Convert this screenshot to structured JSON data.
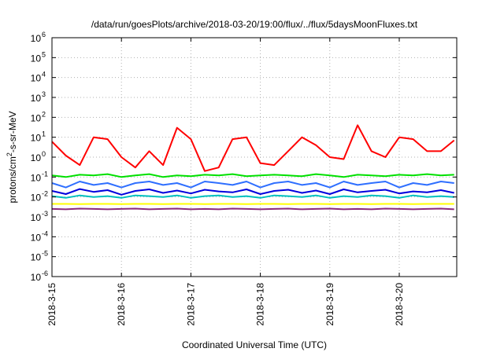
{
  "chart_data": {
    "type": "line",
    "title": "/data/run/goesPlots/archive/2018-03-20/19:00/flux/../flux/5daysMoonFluxes.txt",
    "xlabel": "Coordinated Universal Time (UTC)",
    "ylabel": "protons/cm2-s-sr-MeV",
    "ylabel_parts": {
      "before": "protons/cm",
      "sup": "2",
      "after": "-s-sr-MeV"
    },
    "x_ticks": [
      "2018-3-15",
      "2018-3-16",
      "2018-3-17",
      "2018-3-18",
      "2018-3-19",
      "2018-3-20"
    ],
    "xlim": [
      "2018-3-15 00:00",
      "2018-3-20 19:00"
    ],
    "y_scale": "log",
    "ylim": [
      1e-06,
      1000000.0
    ],
    "y_ticks": [
      {
        "base": "10",
        "exp": "6"
      },
      {
        "base": "10",
        "exp": "5"
      },
      {
        "base": "10",
        "exp": "4"
      },
      {
        "base": "10",
        "exp": "3"
      },
      {
        "base": "10",
        "exp": "2"
      },
      {
        "base": "10",
        "exp": "1"
      },
      {
        "base": "10",
        "exp": "0"
      },
      {
        "base": "10",
        "exp": "-1"
      },
      {
        "base": "10",
        "exp": "-2"
      },
      {
        "base": "10",
        "exp": "-3"
      },
      {
        "base": "10",
        "exp": "-4"
      },
      {
        "base": "10",
        "exp": "-5"
      },
      {
        "base": "10",
        "exp": "-6"
      }
    ],
    "grid": true,
    "x_day_offsets": [
      0,
      0.2,
      0.4,
      0.6,
      0.8,
      1,
      1.2,
      1.4,
      1.6,
      1.8,
      2,
      2.2,
      2.4,
      2.6,
      2.8,
      3,
      3.2,
      3.4,
      3.6,
      3.8,
      4,
      4.2,
      4.4,
      4.6,
      4.8,
      5,
      5.2,
      5.4,
      5.6,
      5.79
    ],
    "series": [
      {
        "color": "#ff0000",
        "values": [
          6,
          1.2,
          0.4,
          10,
          8,
          1,
          0.3,
          2,
          0.4,
          30,
          8,
          0.2,
          0.3,
          8,
          10,
          0.5,
          0.4,
          2,
          10,
          4,
          1,
          0.8,
          40,
          2,
          1,
          10,
          8,
          2,
          2,
          7
        ]
      },
      {
        "color": "#00e000",
        "values": [
          0.12,
          0.1,
          0.13,
          0.12,
          0.14,
          0.1,
          0.12,
          0.14,
          0.1,
          0.12,
          0.11,
          0.13,
          0.12,
          0.14,
          0.11,
          0.12,
          0.13,
          0.12,
          0.11,
          0.14,
          0.12,
          0.1,
          0.13,
          0.12,
          0.11,
          0.13,
          0.12,
          0.14,
          0.12,
          0.13
        ]
      },
      {
        "color": "#2f6fff",
        "values": [
          0.05,
          0.03,
          0.06,
          0.04,
          0.05,
          0.03,
          0.05,
          0.06,
          0.04,
          0.05,
          0.03,
          0.06,
          0.05,
          0.04,
          0.06,
          0.03,
          0.05,
          0.06,
          0.04,
          0.05,
          0.03,
          0.06,
          0.04,
          0.05,
          0.06,
          0.03,
          0.05,
          0.04,
          0.06,
          0.05
        ]
      },
      {
        "color": "#0000dd",
        "values": [
          0.02,
          0.014,
          0.025,
          0.018,
          0.022,
          0.013,
          0.02,
          0.024,
          0.016,
          0.021,
          0.015,
          0.023,
          0.019,
          0.017,
          0.024,
          0.014,
          0.02,
          0.023,
          0.016,
          0.021,
          0.014,
          0.024,
          0.017,
          0.02,
          0.023,
          0.015,
          0.019,
          0.017,
          0.022,
          0.016
        ]
      },
      {
        "color": "#00c0c0",
        "values": [
          0.011,
          0.009,
          0.012,
          0.01,
          0.011,
          0.009,
          0.012,
          0.011,
          0.01,
          0.012,
          0.009,
          0.011,
          0.012,
          0.01,
          0.011,
          0.009,
          0.012,
          0.011,
          0.01,
          0.012,
          0.009,
          0.011,
          0.01,
          0.012,
          0.011,
          0.009,
          0.012,
          0.01,
          0.011,
          0.01
        ]
      },
      {
        "color": "#ffff00",
        "values": [
          0.0045,
          0.0045,
          0.0044,
          0.0045,
          0.0045,
          0.0044,
          0.0045,
          0.0045,
          0.0044,
          0.0045,
          0.0045,
          0.0044,
          0.0045,
          0.0045,
          0.0044,
          0.0045,
          0.0045,
          0.0044,
          0.0045,
          0.0045,
          0.0044,
          0.0045,
          0.0045,
          0.0044,
          0.0045,
          0.0045,
          0.0044,
          0.0045,
          0.0045,
          0.0045
        ]
      },
      {
        "color": "#8b2a7a",
        "values": [
          0.0025,
          0.0024,
          0.0026,
          0.0025,
          0.0024,
          0.0025,
          0.0026,
          0.0024,
          0.0025,
          0.0026,
          0.0024,
          0.0025,
          0.0024,
          0.0026,
          0.0025,
          0.0024,
          0.0025,
          0.0026,
          0.0024,
          0.0025,
          0.0026,
          0.0024,
          0.0025,
          0.0024,
          0.0026,
          0.0025,
          0.0024,
          0.0025,
          0.0026,
          0.0024
        ]
      }
    ]
  }
}
